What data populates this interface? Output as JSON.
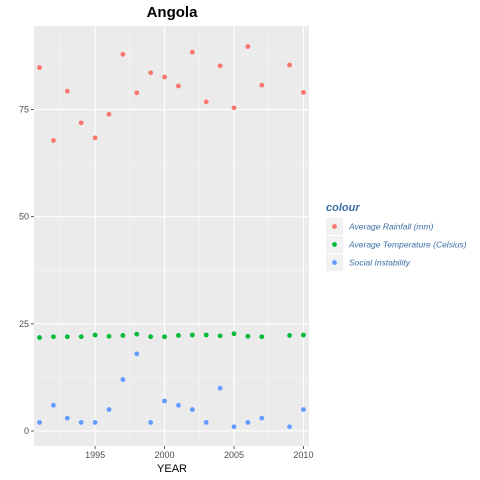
{
  "chart_data": {
    "type": "scatter",
    "title": "Angola",
    "xlabel": "YEAR",
    "ylabel": "",
    "xlim": [
      1990.6,
      2010.4
    ],
    "ylim": [
      -3.5,
      94.5
    ],
    "x_ticks": [
      1995,
      2000,
      2005,
      2010
    ],
    "y_ticks": [
      0,
      25,
      50,
      75
    ],
    "grid": true,
    "legend": {
      "title": "colour",
      "position": "right"
    },
    "series": [
      {
        "name": "Average Rainfall (mm)",
        "color": "#F8766D",
        "points": [
          [
            1991,
            84.8
          ],
          [
            1992,
            67.8
          ],
          [
            1993,
            79.3
          ],
          [
            1994,
            71.9
          ],
          [
            1995,
            68.4
          ],
          [
            1996,
            73.9
          ],
          [
            1997,
            87.9
          ],
          [
            1998,
            78.9
          ],
          [
            1999,
            83.6
          ],
          [
            2000,
            82.6
          ],
          [
            2001,
            80.5
          ],
          [
            2002,
            88.4
          ],
          [
            2003,
            76.8
          ],
          [
            2004,
            85.2
          ],
          [
            2005,
            75.4
          ],
          [
            2006,
            89.7
          ],
          [
            2007,
            80.7
          ],
          [
            2009,
            85.4
          ],
          [
            2010,
            79.0
          ]
        ]
      },
      {
        "name": "Average Temperature (Celsius)",
        "color": "#00BA38",
        "points": [
          [
            1991,
            21.8
          ],
          [
            1992,
            22.0
          ],
          [
            1993,
            22.0
          ],
          [
            1994,
            22.0
          ],
          [
            1995,
            22.4
          ],
          [
            1996,
            22.1
          ],
          [
            1997,
            22.3
          ],
          [
            1998,
            22.6
          ],
          [
            1999,
            22.0
          ],
          [
            2000,
            22.0
          ],
          [
            2001,
            22.3
          ],
          [
            2002,
            22.4
          ],
          [
            2003,
            22.4
          ],
          [
            2004,
            22.2
          ],
          [
            2005,
            22.7
          ],
          [
            2006,
            22.1
          ],
          [
            2007,
            22.0
          ],
          [
            2009,
            22.3
          ],
          [
            2010,
            22.4
          ]
        ]
      },
      {
        "name": "Social Instability",
        "color": "#619CFF",
        "points": [
          [
            1991,
            2
          ],
          [
            1992,
            6
          ],
          [
            1993,
            3
          ],
          [
            1994,
            2
          ],
          [
            1995,
            2
          ],
          [
            1996,
            5
          ],
          [
            1997,
            12
          ],
          [
            1998,
            18
          ],
          [
            1999,
            2
          ],
          [
            2000,
            7
          ],
          [
            2001,
            6
          ],
          [
            2002,
            5
          ],
          [
            2003,
            2
          ],
          [
            2004,
            10
          ],
          [
            2005,
            1
          ],
          [
            2006,
            2
          ],
          [
            2007,
            3
          ],
          [
            2009,
            1
          ],
          [
            2010,
            5
          ]
        ]
      }
    ]
  }
}
